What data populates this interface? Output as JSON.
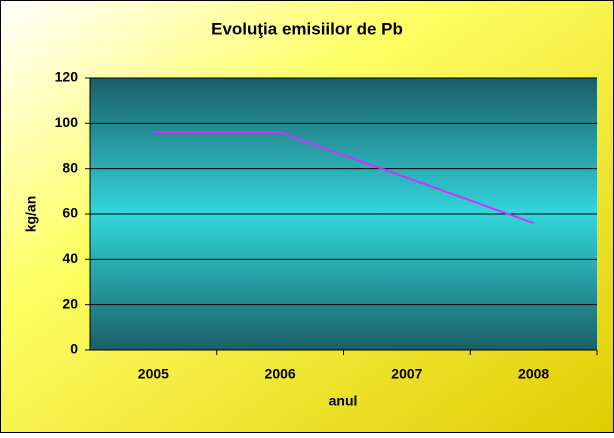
{
  "chart_data": {
    "type": "line",
    "title": "Evoluţia emisiilor de Pb",
    "x_label": "anul",
    "y_label": "kg/an",
    "categories": [
      "2005",
      "2006",
      "2007",
      "2008"
    ],
    "series": [
      {
        "name": "Pb",
        "color": "#cc33ff",
        "values": [
          96,
          96,
          76,
          56
        ]
      }
    ],
    "ylim": [
      0,
      120
    ],
    "yticks": [
      0,
      20,
      40,
      60,
      80,
      100,
      120
    ],
    "grid": true
  }
}
